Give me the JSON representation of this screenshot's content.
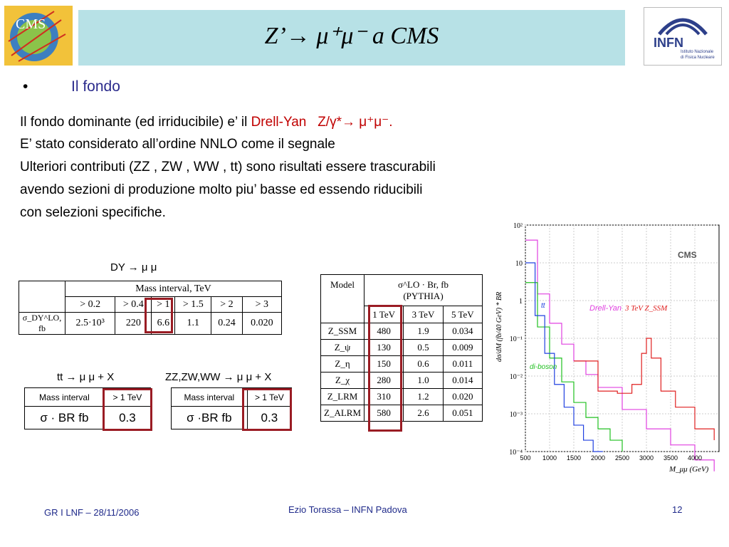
{
  "title": "Z’→ μ⁺μ⁻ a CMS",
  "logos": {
    "cms": "CMS",
    "infn": "INFN",
    "infn_sub1": "Istituto Nazionale",
    "infn_sub2": "di Fisica Nucleare"
  },
  "bullet": {
    "symbol": "•",
    "heading": "Il fondo"
  },
  "body": {
    "line1_text": "Il fondo dominante (ed irriducibile) e’ il ",
    "line1_dy": "Drell-Yan",
    "line1_z": "Z/γ*→ μ⁺μ⁻",
    "line1_end": ".",
    "line2": "E’ stato considerato all’ordine NNLO come il segnale",
    "line3": "Ulteriori contributi (ZZ , ZW , WW , tt) sono risultati essere trascurabili",
    "line4": "avendo sezioni di produzione molto piu’ basse ed essendo riducibili",
    "line5": "con selezioni specifiche."
  },
  "dy_table": {
    "caption": "DY → μ μ",
    "header": "Mass interval, TeV",
    "intervals": [
      "> 0.2",
      "> 0.4",
      "> 1",
      "> 1.5",
      "> 2",
      "> 3"
    ],
    "row_label": "σ_DY^LO, fb",
    "values": [
      "2.5·10³",
      "220",
      "6.6",
      "1.1",
      "0.24",
      "0.020"
    ]
  },
  "tt_table": {
    "caption": "tt → μ μ + X",
    "header_label": "Mass interval",
    "header_value": "> 1 TeV",
    "row_label": "σ · BR fb",
    "row_value": "0.3"
  },
  "vv_table": {
    "caption": "ZZ,ZW,WW → μ μ + X",
    "header_label": "Mass interval",
    "header_value": "> 1 TeV",
    "row_label": "σ ·BR fb",
    "row_value": "0.3"
  },
  "model_table": {
    "col_model": "Model",
    "col_sigma": "σ^LO · Br, fb",
    "col_gen": "(PYTHIA)",
    "energies": [
      "1 TeV",
      "3 TeV",
      "5 TeV"
    ],
    "rows": [
      {
        "model": "Z_SSM",
        "v": [
          "480",
          "1.9",
          "0.034"
        ]
      },
      {
        "model": "Z_ψ",
        "v": [
          "130",
          "0.5",
          "0.009"
        ]
      },
      {
        "model": "Z_η",
        "v": [
          "150",
          "0.6",
          "0.011"
        ]
      },
      {
        "model": "Z_χ",
        "v": [
          "280",
          "1.0",
          "0.014"
        ]
      },
      {
        "model": "Z_LRM",
        "v": [
          "310",
          "1.2",
          "0.020"
        ]
      },
      {
        "model": "Z_ALRM",
        "v": [
          "580",
          "2.6",
          "0.051"
        ]
      }
    ]
  },
  "chart_data": {
    "type": "line",
    "title": "CMS",
    "xlabel": "M_μμ (GeV)",
    "ylabel": "dσ/dM (fb/40 GeV) * BR",
    "xlim": [
      500,
      4500
    ],
    "ylim_log10": [
      -4,
      2
    ],
    "x_ticks": [
      "500",
      "1000",
      "1500",
      "2000",
      "2500",
      "3000",
      "3500",
      "4000"
    ],
    "y_ticks": [
      "10²",
      "10",
      "1",
      "10⁻¹",
      "10⁻²",
      "10⁻³",
      "10⁻⁴"
    ],
    "annotations": [
      "Drell-Yan",
      "3 TeV Z_SSM",
      "di-boson",
      "tt"
    ],
    "series": [
      {
        "name": "Drell-Yan",
        "color": "#e040e0",
        "x": [
          500,
          750,
          1000,
          1250,
          1500,
          1750,
          2000,
          2500,
          3000,
          3500,
          4000,
          4400
        ],
        "y": [
          40,
          1.5,
          0.25,
          0.07,
          0.025,
          0.011,
          0.005,
          0.0013,
          0.0004,
          0.00015,
          6e-05,
          3e-05
        ]
      },
      {
        "name": "3 TeV Z_SSM",
        "color": "#e02020",
        "x": [
          1500,
          2000,
          2400,
          2700,
          2900,
          3000,
          3100,
          3300,
          3600,
          4000,
          4400
        ],
        "y": [
          0.025,
          0.004,
          0.0035,
          0.006,
          0.04,
          0.1,
          0.03,
          0.004,
          0.0015,
          0.0004,
          0.0002
        ]
      },
      {
        "name": "di-boson",
        "color": "#20c020",
        "x": [
          500,
          750,
          1000,
          1250,
          1500,
          1750,
          2000,
          2250,
          2500
        ],
        "y": [
          3,
          0.2,
          0.03,
          0.007,
          0.002,
          0.0008,
          0.0004,
          0.0002,
          0.0001
        ]
      },
      {
        "name": "tt",
        "color": "#2040e0",
        "x": [
          500,
          700,
          900,
          1100,
          1300,
          1500,
          1700,
          1900,
          2100
        ],
        "y": [
          10,
          0.4,
          0.04,
          0.006,
          0.0015,
          0.0005,
          0.0002,
          0.0001,
          0.0001
        ]
      }
    ]
  },
  "footer": {
    "left": "GR I  LNF – 28/11/2006",
    "center": "Ezio Torassa – INFN Padova",
    "page": "12"
  }
}
